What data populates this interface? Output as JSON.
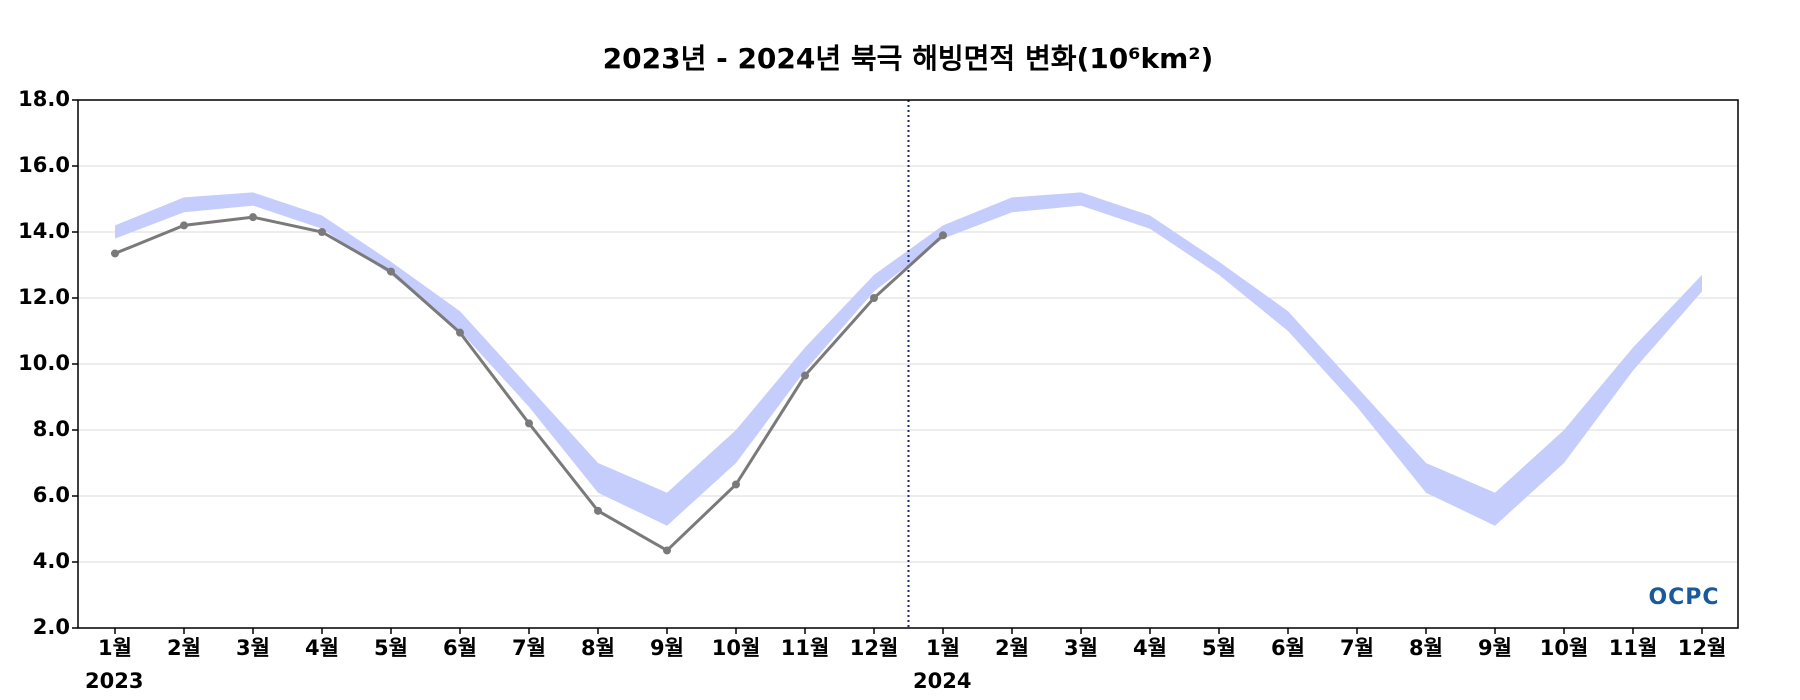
{
  "chart_data": {
    "type": "line",
    "title": "2023년 - 2024년 북극 해빙면적 변화(10⁶km²)",
    "categories": [
      "1월",
      "2월",
      "3월",
      "4월",
      "5월",
      "6월",
      "7월",
      "8월",
      "9월",
      "10월",
      "11월",
      "12월",
      "1월",
      "2월",
      "3월",
      "4월",
      "5월",
      "6월",
      "7월",
      "8월",
      "9월",
      "10월",
      "11월",
      "12월"
    ],
    "years": [
      "2023",
      "2024"
    ],
    "ylim": [
      2,
      18
    ],
    "yticks": [
      {
        "value": 2,
        "label": "2.0"
      },
      {
        "value": 4,
        "label": "4.0"
      },
      {
        "value": 6,
        "label": "6.0"
      },
      {
        "value": 8,
        "label": "8.0"
      },
      {
        "value": 10,
        "label": "10.0"
      },
      {
        "value": 12,
        "label": "12.0"
      },
      {
        "value": 14,
        "label": "14.0"
      },
      {
        "value": 16,
        "label": "16.0"
      },
      {
        "value": 18,
        "label": "18.0"
      }
    ],
    "grid": true,
    "band": {
      "color": "#c4cdfc",
      "upper": [
        14.2,
        15.05,
        15.2,
        14.5,
        13.1,
        11.6,
        9.3,
        7.0,
        6.1,
        8.0,
        10.5,
        12.7,
        14.2,
        15.05,
        15.2,
        14.5,
        13.1,
        11.6,
        9.3,
        7.0,
        6.1,
        8.0,
        10.5,
        12.7
      ],
      "lower": [
        13.8,
        14.6,
        14.8,
        14.1,
        12.7,
        11.0,
        8.7,
        6.1,
        5.1,
        7.0,
        9.8,
        12.2,
        13.8,
        14.6,
        14.8,
        14.1,
        12.7,
        11.0,
        8.7,
        6.1,
        5.1,
        7.0,
        9.8,
        12.2
      ]
    },
    "series": [
      {
        "color": "#7a7a7a",
        "values": [
          13.35,
          14.2,
          14.45,
          14.0,
          12.8,
          10.95,
          8.2,
          5.55,
          4.35,
          6.35,
          9.65,
          12.0,
          13.9,
          null,
          null,
          null,
          null,
          null,
          null,
          null,
          null,
          null,
          null,
          null
        ]
      }
    ],
    "logo": "OCPC"
  }
}
